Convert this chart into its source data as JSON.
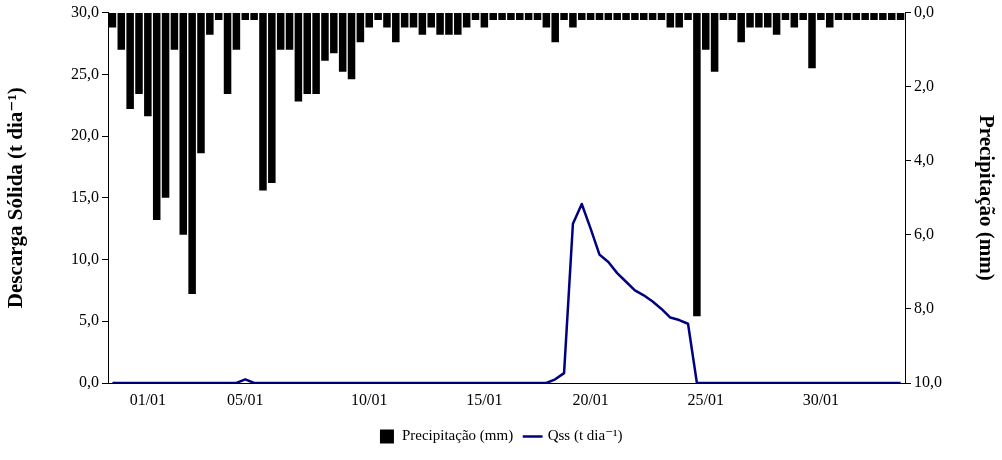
{
  "chart_data": {
    "type": "bar",
    "ylabel": "Descarga Sólida (t dia⁻¹)",
    "y2label": "Precipitação (mm)",
    "legend": "bottom",
    "grid": false,
    "marker": "none",
    "categories": [
      null,
      null,
      null,
      null,
      "01/01",
      null,
      null,
      null,
      null,
      null,
      null,
      null,
      null,
      null,
      null,
      "05/01",
      null,
      null,
      null,
      null,
      null,
      null,
      null,
      null,
      null,
      null,
      null,
      null,
      null,
      "10/01",
      null,
      null,
      null,
      null,
      null,
      null,
      null,
      null,
      null,
      null,
      null,
      null,
      "15/01",
      null,
      null,
      null,
      null,
      null,
      null,
      null,
      null,
      null,
      null,
      null,
      "20/01",
      null,
      null,
      null,
      null,
      null,
      null,
      null,
      null,
      null,
      null,
      null,
      null,
      "25/01",
      null,
      null,
      null,
      null,
      null,
      null,
      null,
      null,
      null,
      null,
      null,
      null,
      "30/01",
      null,
      null,
      null,
      null,
      null,
      null,
      null,
      null,
      null
    ],
    "ylim": [
      0,
      30
    ],
    "yticks": [
      {
        "value": 0,
        "label": "0,0"
      },
      {
        "value": 5,
        "label": "5,0"
      },
      {
        "value": 10,
        "label": "10,0"
      },
      {
        "value": 15,
        "label": "15,0"
      },
      {
        "value": 20,
        "label": "20,0"
      },
      {
        "value": 25,
        "label": "25,0"
      },
      {
        "value": 30,
        "label": "30,0"
      }
    ],
    "y2lim": [
      10,
      0
    ],
    "y2ticks": [
      {
        "value": 0,
        "label": "0,0"
      },
      {
        "value": 2,
        "label": "2,0"
      },
      {
        "value": 4,
        "label": "4,0"
      },
      {
        "value": 6,
        "label": "6,0"
      },
      {
        "value": 8,
        "label": "8,0"
      },
      {
        "value": 10,
        "label": "10,0"
      }
    ],
    "series": [
      {
        "name": "Precipitação (mm)",
        "type": "bar",
        "axis": "y2",
        "color": "#000000",
        "values": [
          0.4,
          1.0,
          2.6,
          2.2,
          2.8,
          5.6,
          5.0,
          1.0,
          6.0,
          7.6,
          3.8,
          0.6,
          0.2,
          2.2,
          1.0,
          0.2,
          0.2,
          4.8,
          4.6,
          1.0,
          1.0,
          2.4,
          2.2,
          2.2,
          1.3,
          1.1,
          1.6,
          1.8,
          0.8,
          0.4,
          0.2,
          0.4,
          0.8,
          0.4,
          0.4,
          0.6,
          0.4,
          0.6,
          0.6,
          0.6,
          0.4,
          0.2,
          0.4,
          0.2,
          0.2,
          0.2,
          0.2,
          0.2,
          0.2,
          0.4,
          0.8,
          0.2,
          0.4,
          0.2,
          0.2,
          0.2,
          0.2,
          0.2,
          0.2,
          0.2,
          0.2,
          0.2,
          0.2,
          0.4,
          0.4,
          0.2,
          8.2,
          1.0,
          1.6,
          0.2,
          0.2,
          0.8,
          0.4,
          0.4,
          0.4,
          0.6,
          0.2,
          0.4,
          0.2,
          1.5,
          0.2,
          0.4,
          0.2,
          0.2,
          0.2,
          0.2,
          0.2,
          0.2,
          0.2,
          0.2
        ]
      },
      {
        "name": "Qss (t dia⁻¹)",
        "type": "line",
        "color": "#000080",
        "values": [
          0,
          0,
          0,
          0,
          0,
          0,
          0,
          0,
          0,
          0,
          0,
          0,
          0,
          0,
          0,
          0.3,
          0,
          0,
          0,
          0,
          0,
          0,
          0,
          0,
          0,
          0,
          0,
          0,
          0,
          0,
          0,
          0,
          0,
          0,
          0,
          0,
          0,
          0,
          0,
          0,
          0,
          0,
          0,
          0,
          0,
          0,
          0,
          0,
          0,
          0,
          0.3,
          0.8,
          12.9,
          14.5,
          12.5,
          10.4,
          9.8,
          8.9,
          8.2,
          7.5,
          7.1,
          6.6,
          6.0,
          5.3,
          5.1,
          4.8,
          0,
          0,
          0,
          0,
          0,
          0,
          0,
          0,
          0,
          0,
          0,
          0,
          0,
          0,
          0,
          0,
          0,
          0,
          0,
          0,
          0,
          0,
          0,
          0
        ]
      }
    ]
  }
}
